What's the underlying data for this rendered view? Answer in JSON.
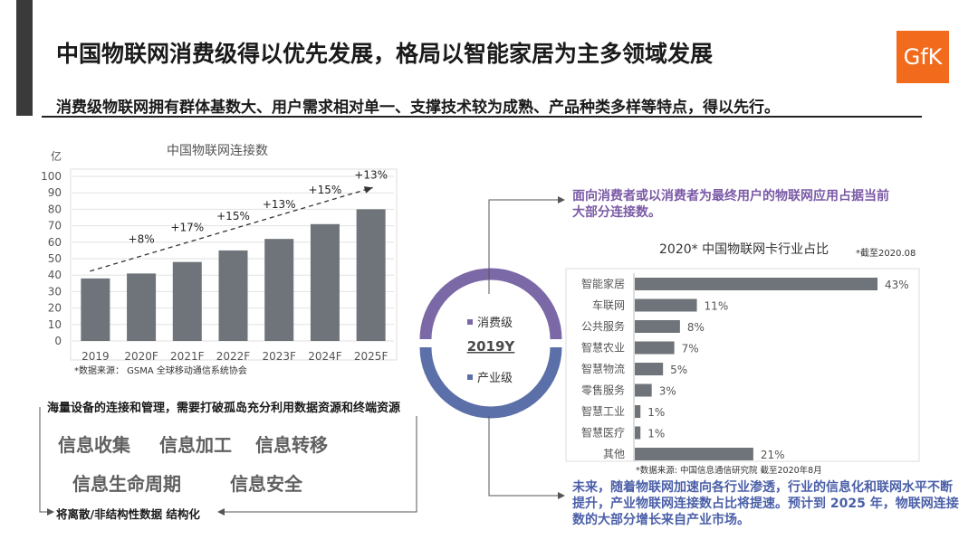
{
  "header": {
    "title": "中国物联网消费级得以优先发展，格局以智能家居为主多领域发展",
    "subtitle": "消费级物联网拥有群体基数大、用户需求相对单一、支撑技术较为成熟、产品种类多样等特点，得以先行。",
    "logo_text": "GfK"
  },
  "left_chart": {
    "title": "中国物联网连接数",
    "y_unit": "亿",
    "source": "*数据来源： GSMA 全球移动通信系统协会"
  },
  "donut": {
    "year": "2019Y",
    "top_label": "消费级",
    "bottom_label": "产业级",
    "colors": {
      "consumer": "#7b68a6",
      "industry": "#5b6fa8"
    }
  },
  "right_chart": {
    "title": "2020* 中国物联网卡行业占比",
    "note": "*截至2020.08",
    "source": "*数据来源:   中国信息通信研究院 截至2020年8月"
  },
  "notes": {
    "purple_note": "面向消费者或以消费者为最终用户的物联网应用占据当前大部分连接数。",
    "bottom_right": "未来，随着物联网加速向各行业渗透，行业的信息化和联网水平不断提升，产业物联网连接数占比将提速。预计到 2025 年，物联网连接数的大部分增长来自产业市场。"
  },
  "bottom_left": {
    "header": "海量设备的连接和管理，需要打破孤岛充分利用数据资源和终端资源",
    "keywords": [
      "信息收集",
      "信息加工",
      "信息转移",
      "信息生命周期",
      "信息安全"
    ],
    "footer": "将离散/非结构性数据 结构化"
  },
  "chart_data": [
    {
      "type": "bar",
      "title": "中国物联网连接数",
      "ylabel": "亿",
      "categories": [
        "2019",
        "2020F",
        "2021F",
        "2022F",
        "2023F",
        "2024F",
        "2025F"
      ],
      "values": [
        38,
        41,
        48,
        55,
        62,
        71,
        80
      ],
      "growth_labels": [
        "+8%",
        "+17%",
        "+15%",
        "+13%",
        "+15%",
        "+13%"
      ],
      "ylim": [
        0,
        100
      ],
      "yticks": [
        "0",
        "10",
        "20",
        "30",
        "40",
        "50",
        "60",
        "70",
        "80",
        "90",
        "100"
      ],
      "grid": true,
      "color": "#6e7479"
    },
    {
      "type": "bar",
      "orientation": "horizontal",
      "title": "2020* 中国物联网卡行业占比",
      "categories": [
        "智能家居",
        "车联网",
        "公共服务",
        "智慧农业",
        "智慧物流",
        "零售服务",
        "智慧工业",
        "智慧医疗",
        "其他"
      ],
      "values": [
        43,
        11,
        8,
        7,
        5,
        3,
        1,
        1,
        21
      ],
      "value_labels": [
        "43%",
        "11%",
        "8%",
        "7%",
        "5%",
        "3%",
        "1%",
        "1%",
        "21%"
      ],
      "color": "#6e7479"
    }
  ]
}
